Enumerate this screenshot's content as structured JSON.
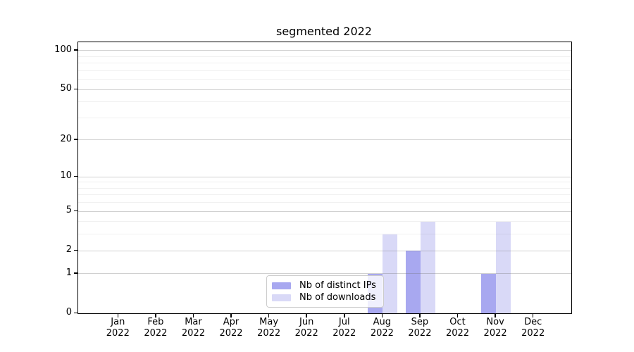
{
  "chart_data": {
    "type": "bar",
    "title": "segmented 2022",
    "categories": [
      {
        "month": "Jan",
        "year": "2022"
      },
      {
        "month": "Feb",
        "year": "2022"
      },
      {
        "month": "Mar",
        "year": "2022"
      },
      {
        "month": "Apr",
        "year": "2022"
      },
      {
        "month": "May",
        "year": "2022"
      },
      {
        "month": "Jun",
        "year": "2022"
      },
      {
        "month": "Jul",
        "year": "2022"
      },
      {
        "month": "Aug",
        "year": "2022"
      },
      {
        "month": "Sep",
        "year": "2022"
      },
      {
        "month": "Oct",
        "year": "2022"
      },
      {
        "month": "Nov",
        "year": "2022"
      },
      {
        "month": "Dec",
        "year": "2022"
      }
    ],
    "series": [
      {
        "name": "Nb of distinct IPs",
        "color": "#a8a8f0",
        "values": [
          0,
          0,
          0,
          0,
          0,
          0,
          0,
          1,
          2,
          0,
          1,
          0
        ]
      },
      {
        "name": "Nb of downloads",
        "color": "#d9d9f7",
        "values": [
          0,
          0,
          0,
          0,
          0,
          0,
          0,
          3,
          4,
          0,
          4,
          0
        ]
      }
    ],
    "y_axis": {
      "scale": "log1p",
      "ticks": [
        0,
        1,
        2,
        5,
        10,
        20,
        50,
        100
      ],
      "minor_ticks": [
        3,
        4,
        6,
        7,
        8,
        9,
        30,
        40,
        60,
        70,
        80,
        90
      ],
      "max": 116
    },
    "x_axis": {
      "tick_label_lines": 2
    },
    "legend": {
      "position": "lower center",
      "entries": [
        "Nb of distinct IPs",
        "Nb of downloads"
      ]
    },
    "grid": true,
    "colors": {
      "spine": "#000000",
      "grid_major": "#d2d2d2",
      "grid_minor": "#eaeaea",
      "background": "#ffffff"
    }
  }
}
